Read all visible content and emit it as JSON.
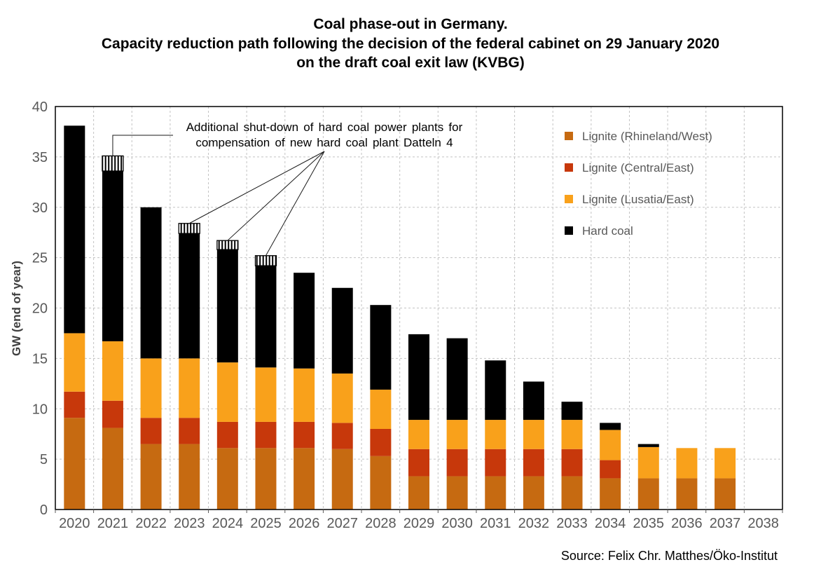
{
  "title": {
    "line1": "Coal phase-out in Germany.",
    "line2": "Capacity reduction path following the decision of the federal cabinet on 29 January 2020",
    "line3": "on the draft coal exit law (KVBG)"
  },
  "y_axis": {
    "label": "GW (end of year)",
    "ticks": [
      0,
      5,
      10,
      15,
      20,
      25,
      30,
      35,
      40
    ],
    "min": 0,
    "max": 40
  },
  "x_axis": {
    "categories": [
      "2020",
      "2021",
      "2022",
      "2023",
      "2024",
      "2025",
      "2026",
      "2027",
      "2028",
      "2029",
      "2030",
      "2031",
      "2032",
      "2033",
      "2034",
      "2035",
      "2036",
      "2037",
      "2038"
    ]
  },
  "legend": {
    "items": [
      {
        "label": "Lignite (Rhineland/West)",
        "color": "#C66A11"
      },
      {
        "label": "Lignite (Central/East)",
        "color": "#C7380B"
      },
      {
        "label": "Lignite (Lusatia/East)",
        "color": "#F9A11B"
      },
      {
        "label": "Hard coal",
        "color": "#000000"
      }
    ]
  },
  "annotation": {
    "line1": "Additional shut-down of hard coal power plants for",
    "line2": "compensation of new hard coal plant Datteln 4"
  },
  "source": "Source: Felix Chr. Matthes/Öko-Institut",
  "colors": {
    "grid": "#C3C3C3",
    "axis_text": "#595959",
    "plot_border": "#000000",
    "annotation_line": "#1A1A1A",
    "background": "#FFFFFF"
  },
  "chart_data": {
    "type": "bar",
    "stacked": true,
    "title": "Coal phase-out in Germany. Capacity reduction path following the decision of the federal cabinet on 29 January 2020 on the draft coal exit law (KVBG)",
    "xlabel": "",
    "ylabel": "GW (end of year)",
    "unit": "GW",
    "ylim": [
      0,
      40
    ],
    "grid": true,
    "legend_position": "top-right inside plot area",
    "categories": [
      "2020",
      "2021",
      "2022",
      "2023",
      "2024",
      "2025",
      "2026",
      "2027",
      "2028",
      "2029",
      "2030",
      "2031",
      "2032",
      "2033",
      "2034",
      "2035",
      "2036",
      "2037",
      "2038"
    ],
    "series": [
      {
        "key": "lignite-rhineland-west",
        "name": "Lignite (Rhineland/West)",
        "color": "#C66A11",
        "values": [
          9.1,
          8.1,
          6.5,
          6.5,
          6.1,
          6.1,
          6.1,
          6.0,
          5.3,
          3.3,
          3.3,
          3.3,
          3.3,
          3.3,
          3.1,
          3.1,
          3.1,
          3.1,
          0
        ]
      },
      {
        "key": "lignite-central-east",
        "name": "Lignite (Central/East)",
        "color": "#C7380B",
        "values": [
          2.6,
          2.7,
          2.6,
          2.6,
          2.6,
          2.6,
          2.6,
          2.6,
          2.7,
          2.7,
          2.7,
          2.7,
          2.7,
          2.7,
          1.8,
          0,
          0,
          0,
          0
        ]
      },
      {
        "key": "lignite-lusatia-east",
        "name": "Lignite (Lusatia/East)",
        "color": "#F9A11B",
        "values": [
          5.8,
          5.9,
          5.9,
          5.9,
          5.9,
          5.4,
          5.3,
          4.9,
          3.9,
          2.9,
          2.9,
          2.9,
          2.9,
          2.9,
          3.0,
          3.1,
          3.0,
          3.0,
          0
        ]
      },
      {
        "key": "hard-coal",
        "name": "Hard coal",
        "color": "#000000",
        "values": [
          20.6,
          16.9,
          15.0,
          12.4,
          11.2,
          10.1,
          9.5,
          8.5,
          8.4,
          8.5,
          8.1,
          5.9,
          3.8,
          1.8,
          0.7,
          0.3,
          0,
          0,
          0
        ]
      },
      {
        "key": "additional-hard-coal-shutdown",
        "name": "Additional shut-down of hard coal power plants (compensation of Datteln 4)",
        "color": "#000000",
        "style": "hatched-vertical",
        "values": [
          0,
          1.5,
          0,
          1.0,
          0.9,
          1.0,
          0,
          0,
          0,
          0,
          0,
          0,
          0,
          0,
          0,
          0,
          0,
          0,
          0
        ]
      }
    ]
  }
}
